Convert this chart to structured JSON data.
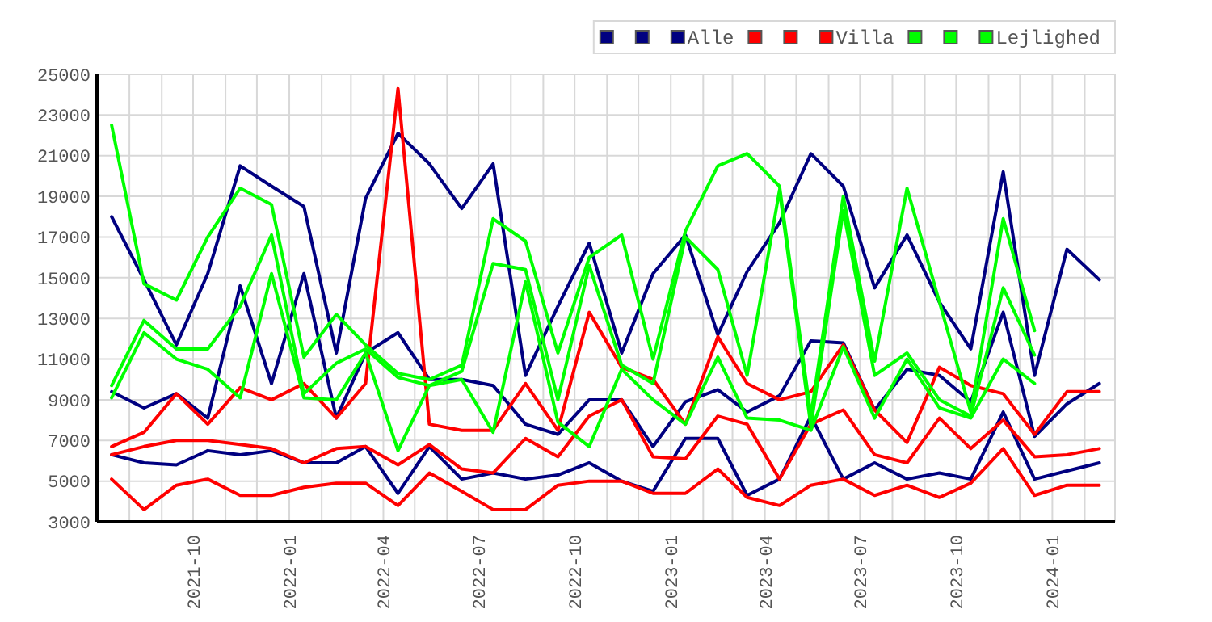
{
  "chart_data": {
    "type": "line",
    "x": [
      "2021-07-15",
      "2021-08-15",
      "2021-09-15",
      "2021-10-15",
      "2021-11-15",
      "2021-12-15",
      "2022-01-15",
      "2022-02-15",
      "2022-03-15",
      "2022-04-15",
      "2022-05-15",
      "2022-06-15",
      "2022-07-15",
      "2022-08-15",
      "2022-09-15",
      "2022-10-15",
      "2022-11-15",
      "2022-12-15",
      "2023-01-15",
      "2023-02-15",
      "2023-03-15",
      "2023-04-15",
      "2023-05-15",
      "2023-06-15",
      "2023-07-15",
      "2023-08-15",
      "2023-09-15",
      "2023-10-15",
      "2023-11-15",
      "2023-12-15",
      "2024-01-15",
      "2024-02-15"
    ],
    "series": [
      {
        "color": "#000080",
        "values": [
          6300,
          5900,
          5800,
          6500,
          6300,
          6500,
          5900,
          5900,
          6700,
          4400,
          6700,
          5100,
          5400,
          5100,
          5300,
          5900,
          5000,
          4500,
          7100,
          7100,
          4300,
          5100,
          8200,
          5100,
          5900,
          5100,
          5400,
          5100,
          8400,
          5100,
          5500,
          5900
        ]
      },
      {
        "color": "#000080",
        "values": [
          9400,
          8600,
          9300,
          8100,
          14600,
          9800,
          15200,
          8100,
          11300,
          12300,
          10000,
          10000,
          9700,
          7800,
          7300,
          9000,
          9000,
          6700,
          8900,
          9500,
          8400,
          9200,
          11900,
          11800,
          8500,
          10500,
          10200,
          8900,
          13300,
          7200,
          8800,
          9800
        ]
      },
      {
        "name": "Alle",
        "color": "#000080",
        "values": [
          18000,
          14900,
          11700,
          15200,
          20500,
          19500,
          18500,
          11300,
          18900,
          22100,
          20600,
          18400,
          20600,
          10200,
          13600,
          16700,
          11300,
          15200,
          17100,
          12200,
          15300,
          17700,
          21100,
          19500,
          14500,
          17100,
          13800,
          11500,
          20200,
          10200,
          16400,
          14900
        ]
      },
      {
        "color": "#ff0000",
        "values": [
          5100,
          3600,
          4800,
          5100,
          4300,
          4300,
          4700,
          4900,
          4900,
          3800,
          5400,
          4500,
          3600,
          3600,
          4800,
          5000,
          5000,
          4400,
          4400,
          5600,
          4200,
          3800,
          4800,
          5100,
          4300,
          4800,
          4200,
          4900,
          6600,
          4300,
          4800,
          4800
        ]
      },
      {
        "color": "#ff0000",
        "values": [
          6300,
          6700,
          7000,
          7000,
          6800,
          6600,
          5900,
          6600,
          6700,
          5800,
          6800,
          5600,
          5400,
          7100,
          6200,
          8200,
          9000,
          6200,
          6100,
          8200,
          7800,
          5100,
          7800,
          8500,
          6300,
          5900,
          8100,
          6600,
          8000,
          6200,
          6300,
          6600
        ]
      },
      {
        "name": "Villa",
        "color": "#ff0000",
        "values": [
          6700,
          7400,
          9300,
          7800,
          9600,
          9000,
          9800,
          8100,
          9800,
          24300,
          7800,
          7500,
          7500,
          9800,
          7500,
          13300,
          10600,
          10000,
          7800,
          12100,
          9800,
          9000,
          9400,
          11700,
          8500,
          6900,
          10600,
          9700,
          9300,
          7300,
          9400,
          9400
        ]
      },
      {
        "color": "#00ff00",
        "values": [
          9100,
          12300,
          11000,
          10500,
          9100,
          15200,
          9100,
          9000,
          11300,
          6500,
          9700,
          10000,
          7400,
          14800,
          7900,
          6700,
          10500,
          9000,
          7800,
          11100,
          8100,
          8000,
          7500,
          11600,
          8100,
          11000,
          8600,
          8100,
          11000,
          9800,
          null,
          null
        ]
      },
      {
        "color": "#00ff00",
        "values": [
          9700,
          12900,
          11500,
          11500,
          13600,
          17100,
          9300,
          10800,
          11500,
          10100,
          9700,
          10400,
          15700,
          15400,
          9000,
          15600,
          10700,
          9800,
          17000,
          15400,
          10200,
          19300,
          7700,
          18300,
          10200,
          11300,
          9000,
          8200,
          14500,
          11200,
          null,
          null
        ]
      },
      {
        "name": "Lejlighed",
        "color": "#00ff00",
        "values": [
          22500,
          14700,
          13900,
          17000,
          19400,
          18600,
          11100,
          13200,
          11700,
          10300,
          10000,
          10700,
          17900,
          16800,
          11300,
          16000,
          17100,
          11000,
          17300,
          20500,
          21100,
          19500,
          8200,
          19000,
          10900,
          19400,
          13800,
          8400,
          17900,
          12400,
          null,
          null
        ]
      }
    ],
    "xlim": [
      "2021-07-01",
      "2024-03-01"
    ],
    "xticks": [
      {
        "value": "2021-08-01",
        "label": null
      },
      {
        "value": "2021-09-01",
        "label": null
      },
      {
        "value": "2021-10-01",
        "label": "2021-10"
      },
      {
        "value": "2021-11-01",
        "label": null
      },
      {
        "value": "2021-12-01",
        "label": null
      },
      {
        "value": "2022-01-01",
        "label": "2022-01"
      },
      {
        "value": "2022-02-01",
        "label": null
      },
      {
        "value": "2022-03-01",
        "label": null
      },
      {
        "value": "2022-04-01",
        "label": "2022-04"
      },
      {
        "value": "2022-05-01",
        "label": null
      },
      {
        "value": "2022-06-01",
        "label": null
      },
      {
        "value": "2022-07-01",
        "label": "2022-07"
      },
      {
        "value": "2022-08-01",
        "label": null
      },
      {
        "value": "2022-09-01",
        "label": null
      },
      {
        "value": "2022-10-01",
        "label": "2022-10"
      },
      {
        "value": "2022-11-01",
        "label": null
      },
      {
        "value": "2022-12-01",
        "label": null
      },
      {
        "value": "2023-01-01",
        "label": "2023-01"
      },
      {
        "value": "2023-02-01",
        "label": null
      },
      {
        "value": "2023-03-01",
        "label": null
      },
      {
        "value": "2023-04-01",
        "label": "2023-04"
      },
      {
        "value": "2023-05-01",
        "label": null
      },
      {
        "value": "2023-06-01",
        "label": null
      },
      {
        "value": "2023-07-01",
        "label": "2023-07"
      },
      {
        "value": "2023-08-01",
        "label": null
      },
      {
        "value": "2023-09-01",
        "label": null
      },
      {
        "value": "2023-10-01",
        "label": "2023-10"
      },
      {
        "value": "2023-11-01",
        "label": null
      },
      {
        "value": "2023-12-01",
        "label": null
      },
      {
        "value": "2024-01-01",
        "label": "2024-01"
      },
      {
        "value": "2024-02-01",
        "label": null
      }
    ],
    "ylim": [
      3000,
      25000
    ],
    "yticks": [
      3000,
      5000,
      7000,
      9000,
      11000,
      13000,
      15000,
      17000,
      19000,
      21000,
      23000,
      25000
    ],
    "grid": true,
    "legend": "top right",
    "marker": "none",
    "line_style": "solid"
  }
}
